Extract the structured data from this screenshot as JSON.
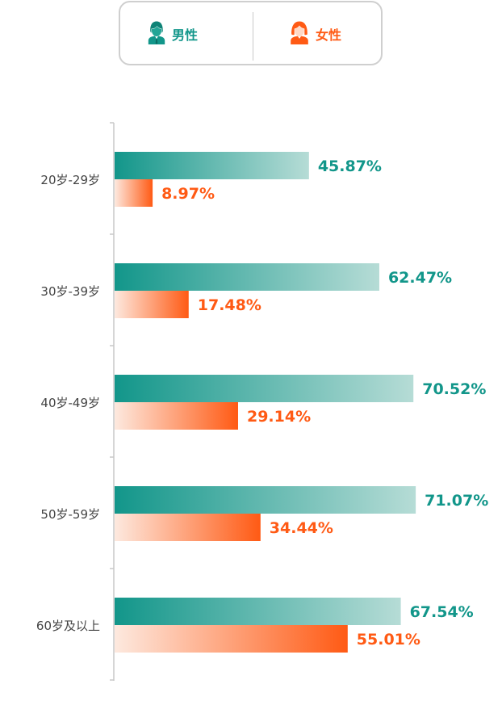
{
  "legend": {
    "male_label": "男性",
    "female_label": "女性",
    "male_icon": "male-person-icon",
    "female_icon": "female-person-icon"
  },
  "colors": {
    "male": "#12968a",
    "male_light": "#b6dcd6",
    "female": "#ff5a14",
    "female_light": "#fde9df",
    "axis": "#c8c8c8",
    "legend_border": "#cfcfcf"
  },
  "chart_data": {
    "type": "bar",
    "orientation": "horizontal",
    "categories": [
      "20岁-29岁",
      "30岁-39岁",
      "40岁-49岁",
      "50岁-59岁",
      "60岁及以上"
    ],
    "series": [
      {
        "name": "男性",
        "values": [
          45.87,
          62.47,
          70.52,
          71.07,
          67.54
        ],
        "labels": [
          "45.87%",
          "62.47%",
          "70.52%",
          "71.07%",
          "67.54%"
        ]
      },
      {
        "name": "女性",
        "values": [
          8.97,
          17.48,
          29.14,
          34.44,
          55.01
        ],
        "labels": [
          "8.97%",
          "17.48%",
          "29.14%",
          "34.44%",
          "55.01%"
        ]
      }
    ],
    "xlim": [
      0,
      100
    ],
    "grid": false,
    "legend_position": "top"
  }
}
